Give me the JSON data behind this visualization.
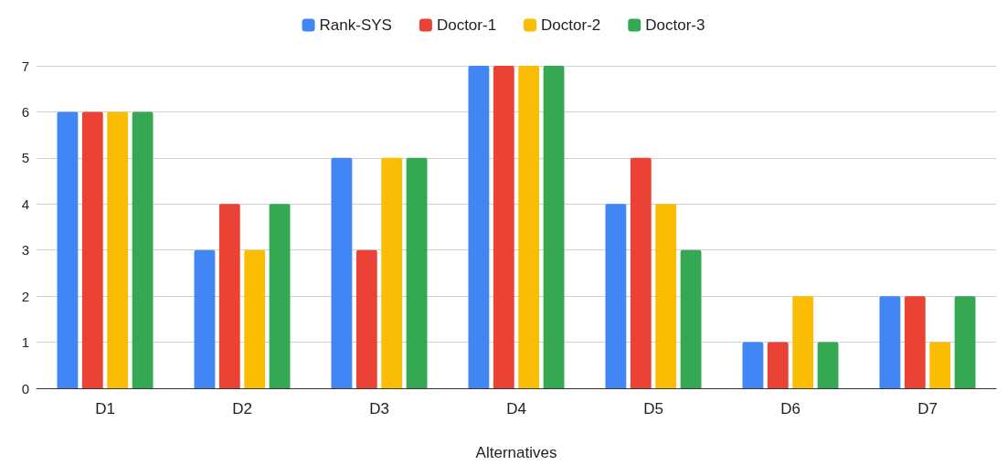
{
  "chart_data": {
    "type": "bar",
    "xlabel": "Alternatives",
    "categories": [
      "D1",
      "D2",
      "D3",
      "D4",
      "D5",
      "D6",
      "D7"
    ],
    "series": [
      {
        "name": "Rank-SYS",
        "color": "#4285f4",
        "values": [
          6,
          3,
          5,
          7,
          4,
          1,
          2
        ]
      },
      {
        "name": "Doctor-1",
        "color": "#ea4335",
        "values": [
          6,
          4,
          3,
          7,
          5,
          1,
          2
        ]
      },
      {
        "name": "Doctor-2",
        "color": "#fbbc04",
        "values": [
          6,
          3,
          5,
          7,
          4,
          2,
          1
        ]
      },
      {
        "name": "Doctor-3",
        "color": "#34a853",
        "values": [
          6,
          4,
          5,
          7,
          3,
          1,
          2
        ]
      }
    ],
    "ylim": [
      0,
      7
    ],
    "yticks": [
      0,
      1,
      2,
      3,
      4,
      5,
      6,
      7
    ],
    "grid": "y",
    "legend": "top"
  }
}
